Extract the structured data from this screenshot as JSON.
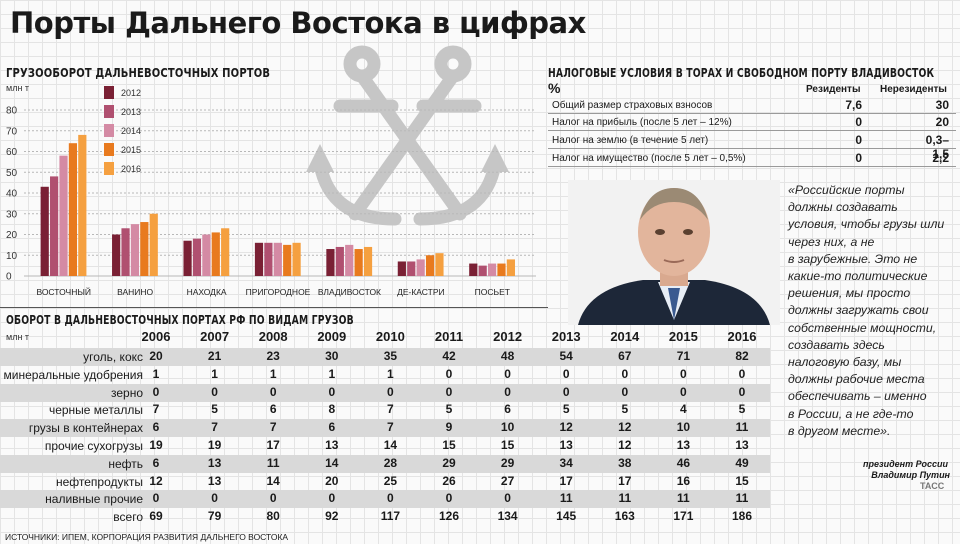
{
  "title": "Порты Дальнего Востока в цифрах",
  "throughput_title": "ГРУЗООБОРОТ ДАЛЬНЕВОСТОЧНЫХ ПОРТОВ",
  "throughput_unit": "млн т",
  "cargo_title": "ОБОРОТ В ДАЛЬНЕВОСТОЧНЫХ ПОРТАХ РФ ПО ВИДАМ ГРУЗОВ",
  "cargo_unit": "млн т",
  "tax": {
    "title": "НАЛОГОВЫЕ УСЛОВИЯ В ТОРАХ И СВОБОДНОМ ПОРТУ ВЛАДИВОСТОК",
    "percent_sign": "%",
    "col_residents": "Резиденты",
    "col_nonresidents": "Нерезиденты",
    "rows": [
      {
        "label": "Общий размер страховых взносов",
        "residents": "7,6",
        "nonresidents": "30"
      },
      {
        "label": "Налог на прибыль (после 5 лет – 12%)",
        "residents": "0",
        "nonresidents": "20"
      },
      {
        "label": "Налог на землю (в течение 5 лет)",
        "residents": "0",
        "nonresidents": "0,3–1,5"
      },
      {
        "label": "Налог на имущество (после 5 лет – 0,5%)",
        "residents": "0",
        "nonresidents": "2,2"
      }
    ]
  },
  "quote": {
    "lines": [
      "«Российские порты",
      "должны создавать",
      "условия, чтобы грузы шли",
      "через них, а не",
      "в зарубежные. Это не",
      "какие-то политические",
      "решения, мы просто",
      "должны загружать свои",
      "собственные мощности,",
      "создавать здесь",
      "налоговую базу, мы",
      "должны рабочие места",
      "обеспечивать – именно",
      "в России, а не где-то",
      "в другом месте»."
    ],
    "attribution_role": "президент России",
    "attribution_name": "Владимир Путин",
    "agency": "ТАСС"
  },
  "source": "ИСТОЧНИКИ: ИПЕМ, КОРПОРАЦИЯ РАЗВИТИЯ ДАЛЬНЕГО ВОСТОКА",
  "colors": {
    "2012": "#7a2034",
    "2013": "#b05070",
    "2014": "#d48aa4",
    "2015": "#e87a1e",
    "2016": "#f5a040"
  },
  "chart_data": [
    {
      "type": "bar",
      "title": "ГРУЗООБОРОТ ДАЛЬНЕВОСТОЧНЫХ ПОРТОВ",
      "ylabel": "млн т",
      "ylim": [
        0,
        80
      ],
      "yticks": [
        "0",
        "10",
        "20",
        "30",
        "40",
        "50",
        "60",
        "70",
        "80"
      ],
      "categories": [
        "ВОСТОЧНЫЙ",
        "ВАНИНО",
        "НАХОДКА",
        "ПРИГОРОДНОЕ",
        "ВЛАДИВОСТОК",
        "ДЕ-КАСТРИ",
        "ПОСЬЕТ"
      ],
      "legend_position": "top",
      "series": [
        {
          "name": "2012",
          "values": [
            43,
            20,
            17,
            16,
            13,
            7,
            6
          ]
        },
        {
          "name": "2013",
          "values": [
            48,
            23,
            18,
            16,
            14,
            7,
            5
          ]
        },
        {
          "name": "2014",
          "values": [
            58,
            25,
            20,
            16,
            15,
            8,
            6
          ]
        },
        {
          "name": "2015",
          "values": [
            64,
            26,
            21,
            15,
            13,
            10,
            6
          ]
        },
        {
          "name": "2016",
          "values": [
            68,
            30,
            23,
            16,
            14,
            11,
            8
          ]
        }
      ]
    },
    {
      "type": "table",
      "title": "ОБОРОТ В ДАЛЬНЕВОСТОЧНЫХ ПОРТАХ РФ ПО ВИДАМ ГРУЗОВ",
      "unit": "млн т",
      "years": [
        "2006",
        "2007",
        "2008",
        "2009",
        "2010",
        "2011",
        "2012",
        "2013",
        "2014",
        "2015",
        "2016"
      ],
      "rows": [
        {
          "name": "уголь, кокс",
          "values": [
            "20",
            "21",
            "23",
            "30",
            "35",
            "42",
            "48",
            "54",
            "67",
            "71",
            "82"
          ]
        },
        {
          "name": "минеральные удобрения",
          "values": [
            "1",
            "1",
            "1",
            "1",
            "1",
            "0",
            "0",
            "0",
            "0",
            "0",
            "0"
          ]
        },
        {
          "name": "зерно",
          "values": [
            "0",
            "0",
            "0",
            "0",
            "0",
            "0",
            "0",
            "0",
            "0",
            "0",
            "0"
          ]
        },
        {
          "name": "черные металлы",
          "values": [
            "7",
            "5",
            "6",
            "8",
            "7",
            "5",
            "6",
            "5",
            "5",
            "4",
            "5"
          ]
        },
        {
          "name": "грузы в контейнерах",
          "values": [
            "6",
            "7",
            "7",
            "6",
            "7",
            "9",
            "10",
            "12",
            "12",
            "10",
            "11"
          ]
        },
        {
          "name": "прочие сухогрузы",
          "values": [
            "19",
            "19",
            "17",
            "13",
            "14",
            "15",
            "15",
            "13",
            "12",
            "13",
            "13"
          ]
        },
        {
          "name": "нефть",
          "values": [
            "6",
            "13",
            "11",
            "14",
            "28",
            "29",
            "29",
            "34",
            "38",
            "46",
            "49"
          ]
        },
        {
          "name": "нефтепродукты",
          "values": [
            "12",
            "13",
            "14",
            "20",
            "25",
            "26",
            "27",
            "17",
            "17",
            "16",
            "15"
          ]
        },
        {
          "name": "наливные прочие",
          "values": [
            "0",
            "0",
            "0",
            "0",
            "0",
            "0",
            "0",
            "11",
            "11",
            "11",
            "11"
          ]
        },
        {
          "name": "всего",
          "values": [
            "69",
            "79",
            "80",
            "92",
            "117",
            "126",
            "134",
            "145",
            "163",
            "171",
            "186"
          ]
        }
      ]
    }
  ]
}
